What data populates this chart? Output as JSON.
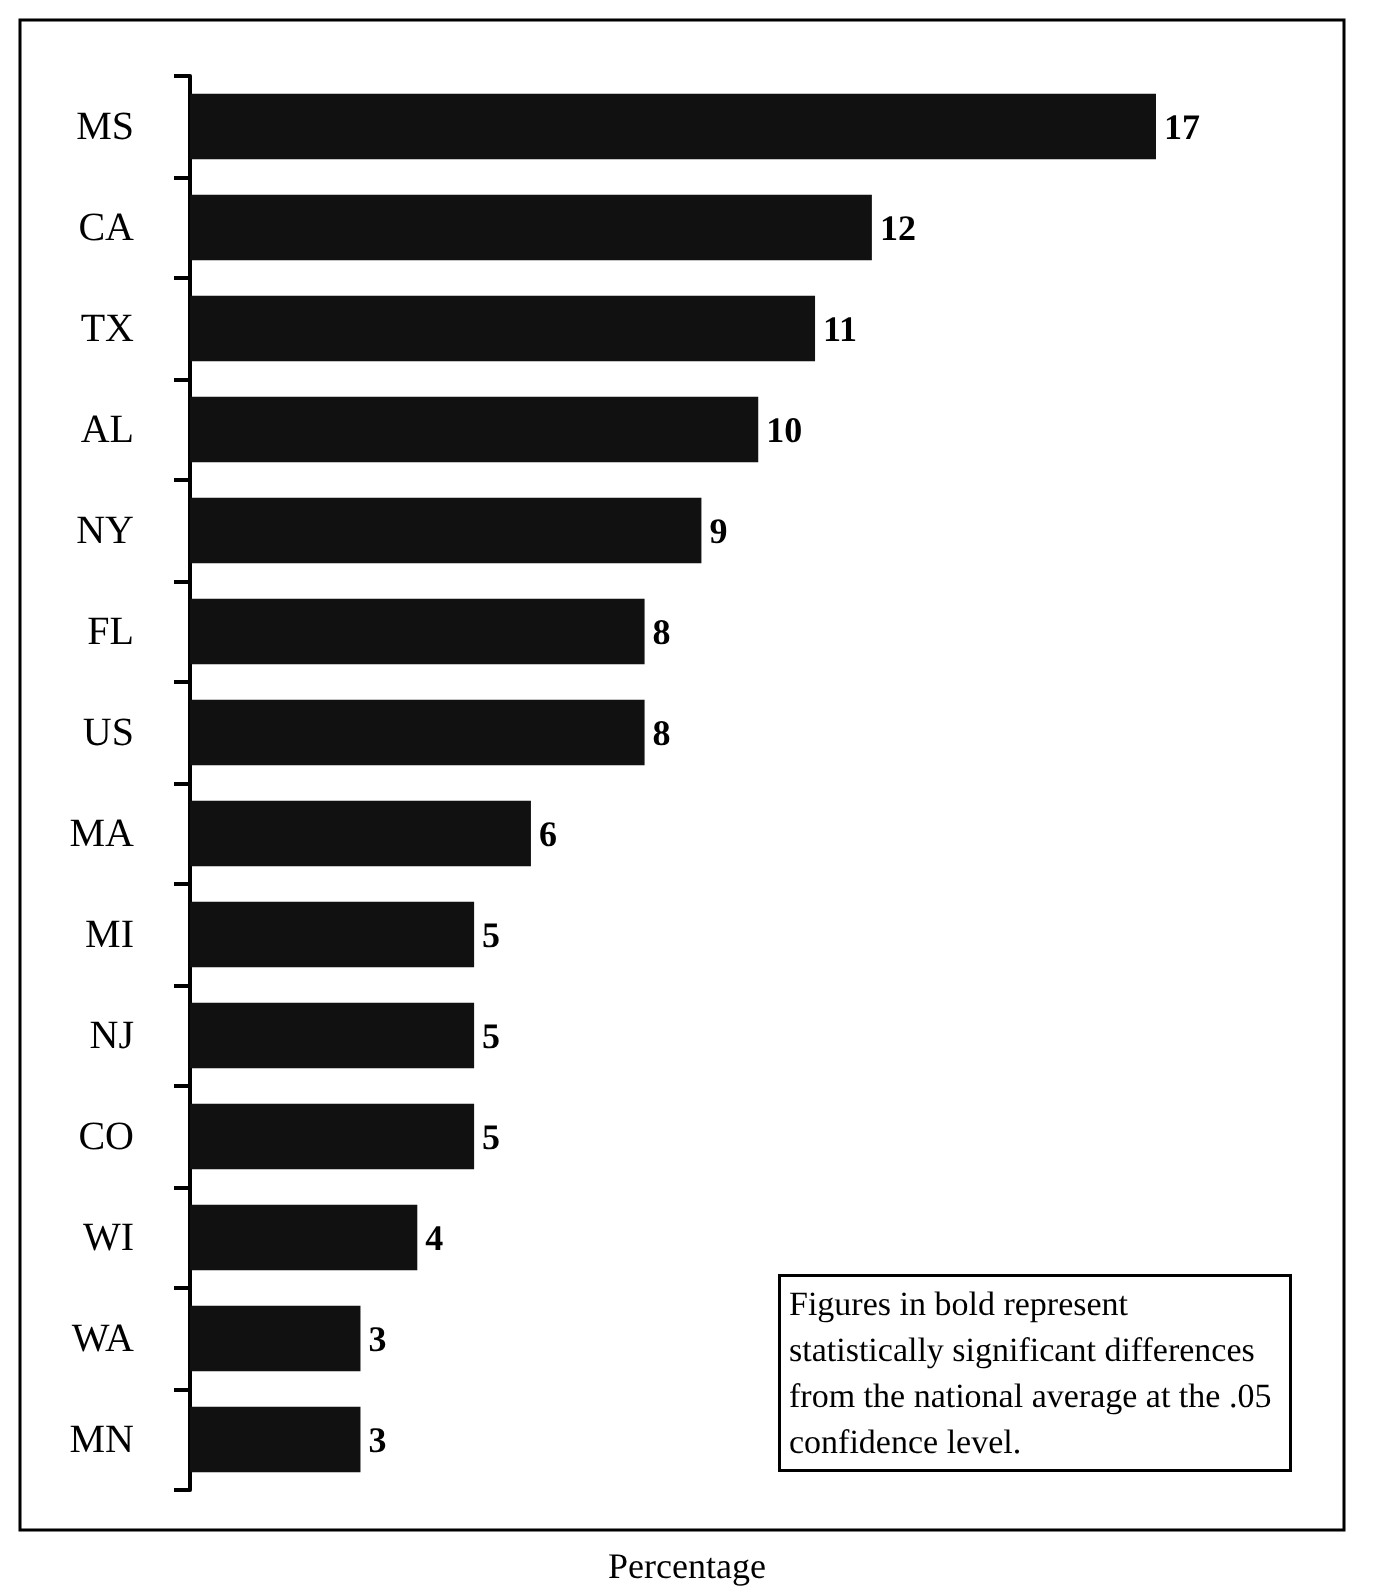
{
  "chart_data": {
    "type": "bar",
    "orientation": "horizontal",
    "xlabel": "Percentage",
    "categories": [
      "MS",
      "CA",
      "TX",
      "AL",
      "NY",
      "FL",
      "US",
      "MA",
      "MI",
      "NJ",
      "CO",
      "WI",
      "WA",
      "MN"
    ],
    "values": [
      17,
      12,
      11,
      10,
      9,
      8,
      8,
      6,
      5,
      5,
      5,
      4,
      3,
      3
    ],
    "color": "#111111",
    "data_labels": true,
    "annotations": [
      "Figures in bold represent statistically significant differences from the national average at the .05 confidence level."
    ]
  }
}
